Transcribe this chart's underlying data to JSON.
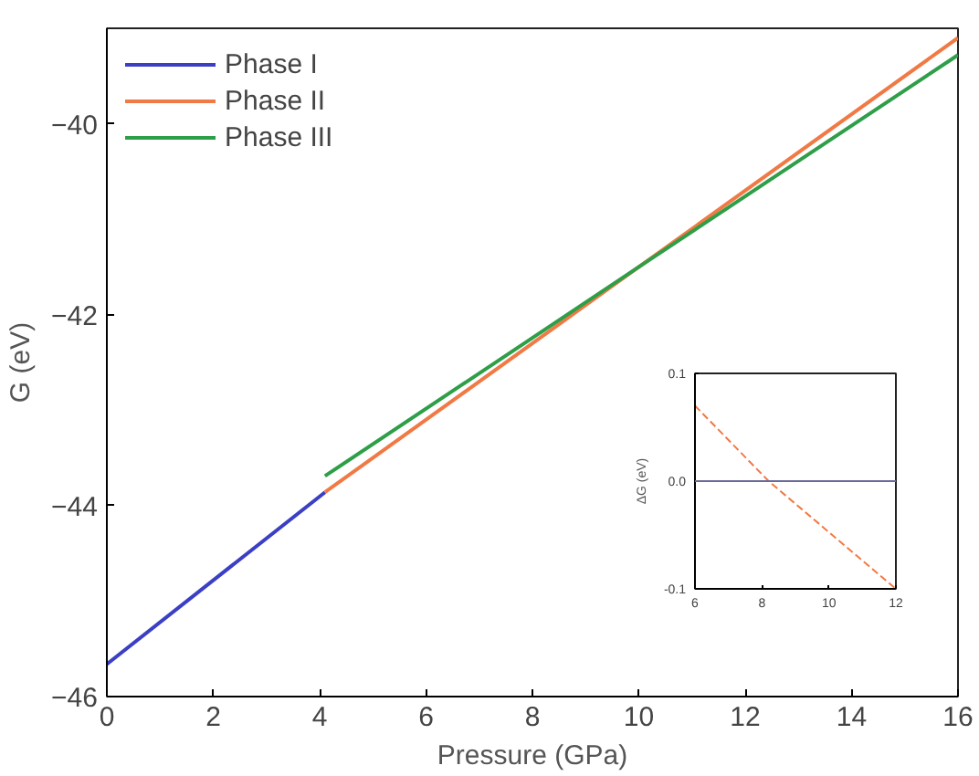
{
  "chart_data": [
    {
      "type": "line",
      "xlabel": "Pressure (GPa)",
      "ylabel": "G (eV)",
      "xlim": [
        0,
        16
      ],
      "ylim": [
        -46,
        -39
      ],
      "xticks": [
        0,
        2,
        4,
        6,
        8,
        10,
        12,
        14,
        16
      ],
      "yticks": [
        -46,
        -44,
        -42,
        -40
      ],
      "legend": "top left",
      "grid": false,
      "series": [
        {
          "name": "Phase I",
          "color": "#3a3fc4",
          "x": [
            0,
            4.1
          ],
          "values": [
            -45.66,
            -43.86
          ]
        },
        {
          "name": "Phase II",
          "color": "#f07a45",
          "x": [
            4.1,
            10,
            16
          ],
          "values": [
            -43.86,
            -41.5,
            -39.1
          ]
        },
        {
          "name": "Phase III",
          "color": "#2e9e48",
          "x": [
            4.1,
            10,
            16
          ],
          "values": [
            -43.69,
            -41.5,
            -39.28
          ]
        }
      ]
    },
    {
      "type": "line",
      "ylabel": "ΔG (eV)",
      "xlim": [
        6,
        12
      ],
      "ylim": [
        -0.1,
        0.1
      ],
      "xticks": [
        6,
        8,
        10,
        12
      ],
      "yticks": [
        {
          "value": -0.1,
          "label": "-0.1"
        },
        {
          "value": 0,
          "label": "0.0"
        },
        {
          "value": 0.1,
          "label": "0.1"
        }
      ],
      "grid": false,
      "line_style": "dashed",
      "ref_lines": [
        {
          "axis": "y",
          "value": 0,
          "color": "#6a6a9a"
        }
      ],
      "series": [
        {
          "color": "#f07a45",
          "x": [
            6,
            8.2,
            12
          ],
          "values": [
            0.07,
            0.0,
            -0.1
          ]
        }
      ]
    }
  ]
}
